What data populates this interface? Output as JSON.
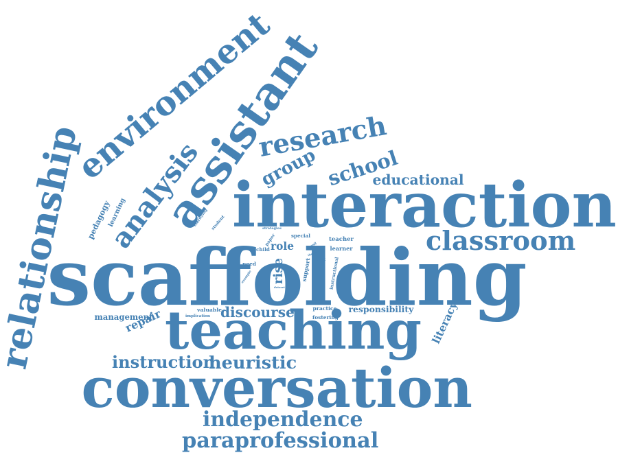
{
  "word_cloud": {
    "color": "#4682b4",
    "words": [
      {
        "text": "scaffolding"
      },
      {
        "text": "interaction"
      },
      {
        "text": "conversation"
      },
      {
        "text": "teaching"
      },
      {
        "text": "assistant"
      },
      {
        "text": "environment"
      },
      {
        "text": "relationship"
      },
      {
        "text": "analysis"
      },
      {
        "text": "research"
      },
      {
        "text": "classroom"
      },
      {
        "text": "school"
      },
      {
        "text": "group"
      },
      {
        "text": "educational"
      },
      {
        "text": "independence"
      },
      {
        "text": "paraprofessional"
      },
      {
        "text": "instruction"
      },
      {
        "text": "heuristic"
      },
      {
        "text": "discourse"
      },
      {
        "text": "repair"
      },
      {
        "text": "management"
      },
      {
        "text": "responsibility"
      },
      {
        "text": "literacy"
      },
      {
        "text": "pedagogy"
      },
      {
        "text": "learning"
      },
      {
        "text": "role"
      },
      {
        "text": "rise"
      },
      {
        "text": "teacher"
      },
      {
        "text": "learner"
      },
      {
        "text": "special"
      },
      {
        "text": "support"
      },
      {
        "text": "clarifying"
      },
      {
        "text": "student"
      },
      {
        "text": "strategies"
      },
      {
        "text": "paper"
      },
      {
        "text": "pupil"
      },
      {
        "text": "child"
      },
      {
        "text": "talk"
      },
      {
        "text": "need"
      },
      {
        "text": "instructional"
      },
      {
        "text": "practice"
      },
      {
        "text": "fostering"
      },
      {
        "text": "valuable"
      },
      {
        "text": "implication"
      },
      {
        "text": "example"
      },
      {
        "text": "dataset"
      },
      {
        "text": "theory"
      }
    ]
  }
}
